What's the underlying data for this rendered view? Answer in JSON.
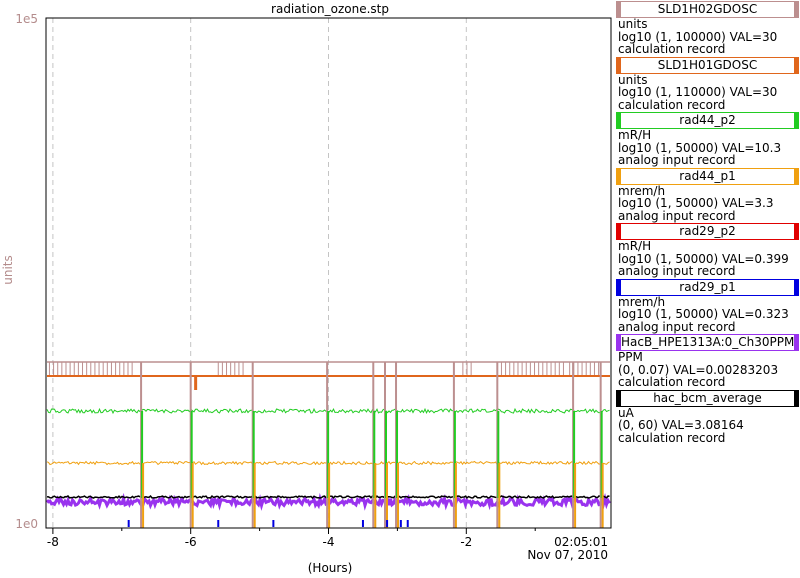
{
  "chart_data": {
    "type": "line",
    "title": "radiation_ozone.stp",
    "ylabel": "units",
    "ylabel_color": "#b48c8c",
    "y_scale": "log",
    "y_tick_labels": [
      "1e5",
      "1e0"
    ],
    "x_axis_label": "(Hours)",
    "x_tick_labels": [
      "-8",
      "-6",
      "-4",
      "-2"
    ],
    "x_ticks": [
      -8,
      -6,
      -4,
      -2
    ],
    "xlim": [
      -8.1,
      0.1
    ],
    "end_time": "02:05:01",
    "end_date": "Nov 07, 2010",
    "grid": true,
    "legend_placement": "right",
    "series": [
      {
        "name": "SLD1H02GDOSC",
        "units": "units",
        "range": "log10 (1, 100000) VAL=30",
        "type_label": "calculation record",
        "color": "#bc8f8f",
        "value": 30
      },
      {
        "name": "SLD1H01GDOSC",
        "units": "units",
        "range": "log10 (1, 110000) VAL=30",
        "type_label": "calculation record",
        "color": "#e0661c",
        "value": 30
      },
      {
        "name": "rad44_p2",
        "units": "mR/H",
        "range": "log10 (1, 50000) VAL=10.3",
        "type_label": "analog input record",
        "color": "#22cc22",
        "value": 10.3
      },
      {
        "name": "rad44_p1",
        "units": "mrem/h",
        "range": "log10 (1, 50000) VAL=3.3",
        "type_label": "analog input record",
        "color": "#f0a010",
        "value": 3.3
      },
      {
        "name": "rad29_p2",
        "units": "mR/H",
        "range": "log10 (1, 50000) VAL=0.399",
        "type_label": "analog input record",
        "color": "#e00000",
        "value": 0.399
      },
      {
        "name": "rad29_p1",
        "units": "mrem/h",
        "range": "log10 (1, 50000) VAL=0.323",
        "type_label": "analog input record",
        "color": "#0000e0",
        "value": 0.323
      },
      {
        "name": "HacB_HPE1313A:0_Ch30PPM",
        "units": "PPM",
        "range": "(0, 0.07) VAL=0.00283203",
        "type_label": "calculation record",
        "color": "#9933ee",
        "value": 0.00283203
      },
      {
        "name": "hac_bcm_average",
        "units": "uA",
        "range": "(0, 60) VAL=3.08164",
        "type_label": "calculation record",
        "color": "#000000",
        "value": 3.08164
      }
    ]
  }
}
